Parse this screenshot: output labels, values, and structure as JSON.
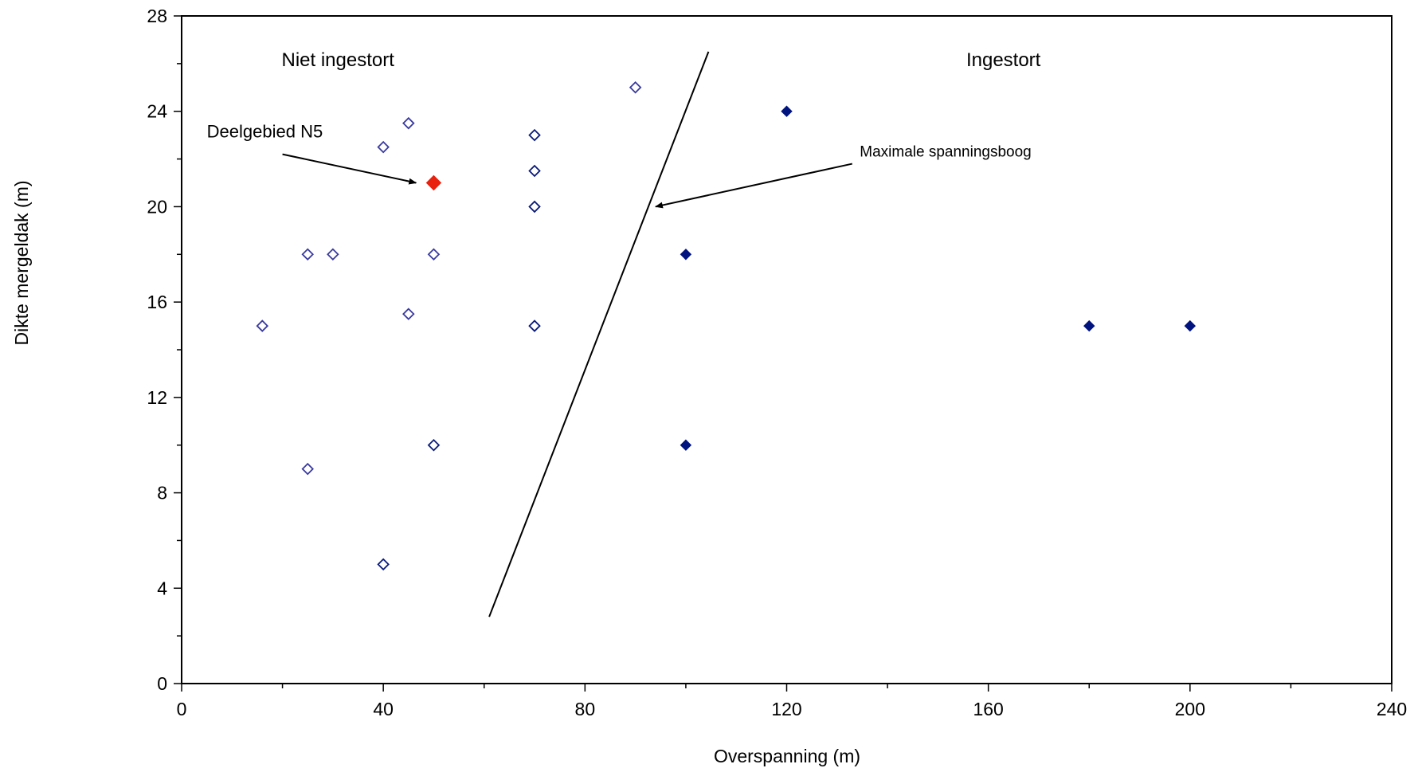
{
  "chart_data": {
    "type": "scatter",
    "xlabel": "Overspanning (m)",
    "ylabel": "Dikte mergeldak (m)",
    "xlim": [
      0,
      240
    ],
    "ylim": [
      0,
      28
    ],
    "xticks": [
      0,
      40,
      80,
      120,
      160,
      200,
      240
    ],
    "yticks": [
      0,
      4,
      8,
      12,
      16,
      20,
      24,
      28
    ],
    "x_minor_step": 20,
    "y_minor_step": 2,
    "grid": false,
    "series": [
      {
        "marker": "diamond-open",
        "color": "#3a3aa0",
        "points": [
          {
            "x": 16,
            "y": 15
          },
          {
            "x": 25,
            "y": 18
          },
          {
            "x": 30,
            "y": 18
          },
          {
            "x": 25,
            "y": 9
          },
          {
            "x": 40,
            "y": 22.5
          },
          {
            "x": 45,
            "y": 23.5
          },
          {
            "x": 45,
            "y": 15.5
          },
          {
            "x": 50,
            "y": 18
          },
          {
            "x": 90,
            "y": 25
          }
        ]
      },
      {
        "marker": "diamond-open",
        "color": "#0a1a7a",
        "points": [
          {
            "x": 40,
            "y": 5
          },
          {
            "x": 50,
            "y": 10
          },
          {
            "x": 70,
            "y": 23
          },
          {
            "x": 70,
            "y": 21.5
          },
          {
            "x": 70,
            "y": 20
          },
          {
            "x": 70,
            "y": 15
          }
        ]
      },
      {
        "marker": "diamond-filled",
        "color": "#00137f",
        "points": [
          {
            "x": 100,
            "y": 18
          },
          {
            "x": 100,
            "y": 10
          },
          {
            "x": 120,
            "y": 24
          },
          {
            "x": 180,
            "y": 15
          },
          {
            "x": 200,
            "y": 15
          }
        ]
      },
      {
        "marker": "diamond-filled",
        "color": "#e8220f",
        "points": [
          {
            "x": 50,
            "y": 21
          }
        ]
      }
    ],
    "boundary_line": {
      "from": {
        "x": 61,
        "y": 2.8
      },
      "to": {
        "x": 104.5,
        "y": 26.5
      },
      "color": "#000000"
    },
    "region_labels": [
      {
        "text": "Niet ingestort",
        "x": 31,
        "y": 25.9
      },
      {
        "text": "Ingestort",
        "x": 163,
        "y": 25.9
      }
    ],
    "annotations": [
      {
        "text": "Deelgebied N5",
        "text_x": 5,
        "text_y": 22.9,
        "size": "normal",
        "arrow_from": {
          "x": 20,
          "y": 22.2
        },
        "arrow_to": {
          "x": 46.5,
          "y": 21
        }
      },
      {
        "text": "Maximale spanningsboog",
        "text_x": 134.5,
        "text_y": 22.1,
        "size": "small",
        "arrow_from": {
          "x": 133,
          "y": 21.8
        },
        "arrow_to": {
          "x": 94,
          "y": 20
        }
      }
    ]
  }
}
